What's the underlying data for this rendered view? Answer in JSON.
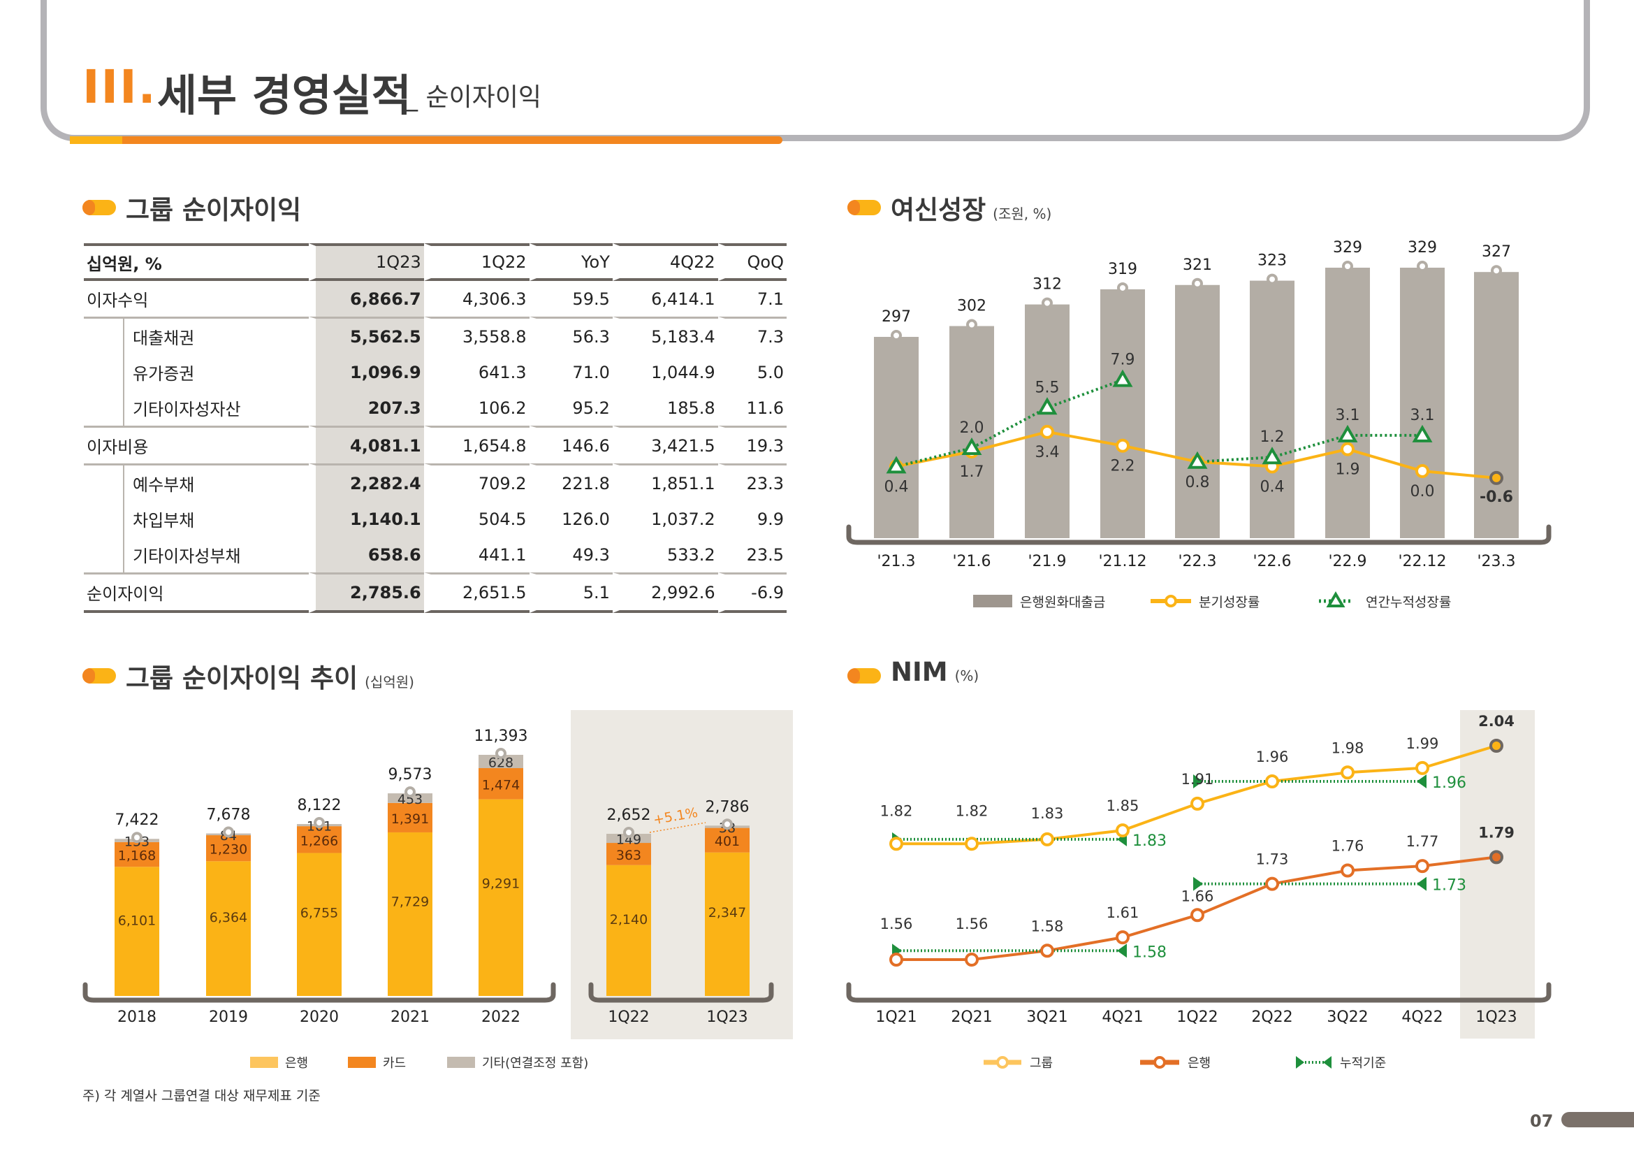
{
  "header": {
    "section_number": "III.",
    "title": "세부 경영실적",
    "subtitle": "_ 순이자이익"
  },
  "colors": {
    "orange": "#f3861f",
    "yellow": "#fbb316",
    "gray_bar": "#b3ada5",
    "green": "#1e8f3c",
    "bank_line": "#e36f26",
    "frame_gray": "#b4b3b7"
  },
  "table_section": {
    "title": "그룹 순이자이익",
    "columns": [
      "십억원, %",
      "1Q23",
      "1Q22",
      "YoY",
      "4Q22",
      "QoQ"
    ],
    "rows": [
      {
        "label": "이자수익",
        "level": 0,
        "values": [
          "6,866.7",
          "4,306.3",
          "59.5",
          "6,414.1",
          "7.1"
        ]
      },
      {
        "label": "대출채권",
        "level": 1,
        "values": [
          "5,562.5",
          "3,558.8",
          "56.3",
          "5,183.4",
          "7.3"
        ]
      },
      {
        "label": "유가증권",
        "level": 1,
        "values": [
          "1,096.9",
          "641.3",
          "71.0",
          "1,044.9",
          "5.0"
        ]
      },
      {
        "label": "기타이자성자산",
        "level": 1,
        "values": [
          "207.3",
          "106.2",
          "95.2",
          "185.8",
          "11.6"
        ]
      },
      {
        "label": "이자비용",
        "level": 0,
        "values": [
          "4,081.1",
          "1,654.8",
          "146.6",
          "3,421.5",
          "19.3"
        ]
      },
      {
        "label": "예수부채",
        "level": 1,
        "values": [
          "2,282.4",
          "709.2",
          "221.8",
          "1,851.1",
          "23.3"
        ]
      },
      {
        "label": "차입부채",
        "level": 1,
        "values": [
          "1,140.1",
          "504.5",
          "126.0",
          "1,037.2",
          "9.9"
        ]
      },
      {
        "label": "기타이자성부채",
        "level": 1,
        "values": [
          "658.6",
          "441.1",
          "49.3",
          "533.2",
          "23.5"
        ]
      },
      {
        "label": "순이자이익",
        "level": 0,
        "values": [
          "2,785.6",
          "2,651.5",
          "5.1",
          "2,992.6",
          "-6.9"
        ]
      }
    ]
  },
  "loan_section": {
    "title": "여신성장",
    "unit": "(조원, %)"
  },
  "trend_section": {
    "title": "그룹 순이자이익 추이",
    "unit": "(십억원)"
  },
  "nim_section": {
    "title": "NIM",
    "unit": "(%)"
  },
  "footnote": "주) 각 계열사 그룹연결 대상 재무제표 기준",
  "page_number": "07",
  "chart_data": [
    {
      "id": "loan-growth",
      "type": "bar",
      "title": "여신성장 (조원, %)",
      "categories": [
        "'21.3",
        "'21.6",
        "'21.9",
        "'21.12",
        "'22.3",
        "'22.6",
        "'22.9",
        "'22.12",
        "'23.3"
      ],
      "series": [
        {
          "name": "은행원화대출금",
          "type": "bar",
          "values": [
            297,
            302,
            312,
            319,
            321,
            323,
            329,
            329,
            327
          ]
        },
        {
          "name": "분기성장률",
          "type": "line",
          "values": [
            0.4,
            1.7,
            3.4,
            2.2,
            0.8,
            0.4,
            1.9,
            0.0,
            -0.6
          ]
        },
        {
          "name": "연간누적성장률",
          "type": "line-dotted",
          "values": [
            0.4,
            2.0,
            5.5,
            7.9,
            0.8,
            1.2,
            3.1,
            3.1,
            null
          ]
        }
      ],
      "legend": "bottom",
      "grid": false
    },
    {
      "id": "nii-trend",
      "type": "bar",
      "stacked": true,
      "title": "그룹 순이자이익 추이 (십억원)",
      "categories": [
        "2018",
        "2019",
        "2020",
        "2021",
        "2022",
        "1Q22",
        "1Q23"
      ],
      "series": [
        {
          "name": "은행",
          "values": [
            6101,
            6364,
            6755,
            7729,
            9291,
            2140,
            2347
          ]
        },
        {
          "name": "카드",
          "values": [
            1168,
            1230,
            1266,
            1391,
            1474,
            363,
            401
          ]
        },
        {
          "name": "기타(연결조정 포함)",
          "values": [
            153,
            84,
            101,
            453,
            628,
            149,
            38
          ]
        }
      ],
      "totals": [
        "7,422",
        "7,678",
        "8,122",
        "9,573",
        "11,393",
        "2,652",
        "2,786"
      ],
      "annotation": "+5.1%",
      "legend": "bottom",
      "grid": false
    },
    {
      "id": "nim",
      "type": "line",
      "title": "NIM (%)",
      "categories": [
        "1Q21",
        "2Q21",
        "3Q21",
        "4Q21",
        "1Q22",
        "2Q22",
        "3Q22",
        "4Q22",
        "1Q23"
      ],
      "series": [
        {
          "name": "그룹",
          "values": [
            1.82,
            1.82,
            1.83,
            1.85,
            1.91,
            1.96,
            1.98,
            1.99,
            2.04
          ]
        },
        {
          "name": "은행",
          "values": [
            1.56,
            1.56,
            1.58,
            1.61,
            1.66,
            1.73,
            1.76,
            1.77,
            1.79
          ]
        }
      ],
      "cumulative": [
        {
          "name": "누적기준",
          "series": "그룹",
          "from": "1Q21",
          "to": "4Q21",
          "value": 1.83
        },
        {
          "name": "누적기준",
          "series": "그룹",
          "from": "1Q22",
          "to": "4Q22",
          "value": 1.96
        },
        {
          "name": "누적기준",
          "series": "은행",
          "from": "1Q21",
          "to": "4Q21",
          "value": 1.58
        },
        {
          "name": "누적기준",
          "series": "은행",
          "from": "1Q22",
          "to": "4Q22",
          "value": 1.73
        }
      ],
      "highlight": "1Q23",
      "legend": [
        "그룹",
        "은행",
        "누적기준"
      ],
      "grid": false
    }
  ]
}
